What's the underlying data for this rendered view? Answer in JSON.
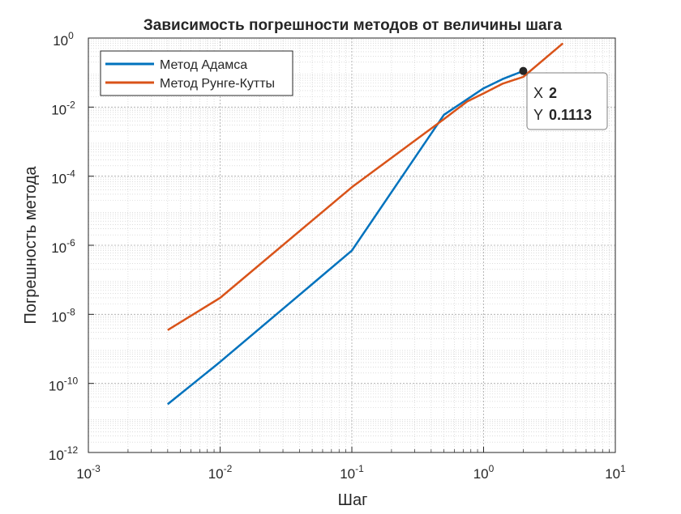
{
  "chart_data": {
    "type": "line",
    "title": "Зависимость погрешности методов от величины шага",
    "xlabel": "Шаг",
    "ylabel": "Погрешность метода",
    "xscale": "log",
    "yscale": "log",
    "xlim": [
      0.001,
      10
    ],
    "ylim": [
      1e-12,
      1
    ],
    "grid": "major+minor",
    "legend_location": "top-left",
    "xticks": [
      {
        "value": 0.001,
        "base": "10",
        "exp": "-3"
      },
      {
        "value": 0.01,
        "base": "10",
        "exp": "-2"
      },
      {
        "value": 0.1,
        "base": "10",
        "exp": "-1"
      },
      {
        "value": 1,
        "base": "10",
        "exp": "0"
      },
      {
        "value": 10,
        "base": "10",
        "exp": "1"
      }
    ],
    "yticks": [
      {
        "value": 1e-12,
        "base": "10",
        "exp": "-12"
      },
      {
        "value": 1e-10,
        "base": "10",
        "exp": "-10"
      },
      {
        "value": 1e-08,
        "base": "10",
        "exp": "-8"
      },
      {
        "value": 1e-06,
        "base": "10",
        "exp": "-6"
      },
      {
        "value": 0.0001,
        "base": "10",
        "exp": "-4"
      },
      {
        "value": 0.01,
        "base": "10",
        "exp": "-2"
      },
      {
        "value": 1,
        "base": "10",
        "exp": "0"
      }
    ],
    "series": [
      {
        "name": "Метод Адамса",
        "color": "#0072BD",
        "x": [
          0.004,
          0.01,
          0.1,
          0.5,
          1.0,
          1.4,
          2.0
        ],
        "y": [
          2.5e-11,
          4.2e-10,
          7e-07,
          0.006,
          0.035,
          0.065,
          0.1113
        ]
      },
      {
        "name": "Метод Рунге-Кутты",
        "color": "#D95319",
        "x": [
          0.004,
          0.01,
          0.1,
          0.5,
          0.75,
          1.0,
          1.4,
          2.0,
          4.0
        ],
        "y": [
          3.5e-09,
          3e-08,
          4.8e-05,
          0.0045,
          0.0145,
          0.025,
          0.048,
          0.075,
          0.7
        ]
      }
    ],
    "datatip": {
      "x_label": "X",
      "x_value": "2",
      "y_label": "Y",
      "y_value": "0.1113",
      "x": 2,
      "y": 0.1113
    }
  }
}
